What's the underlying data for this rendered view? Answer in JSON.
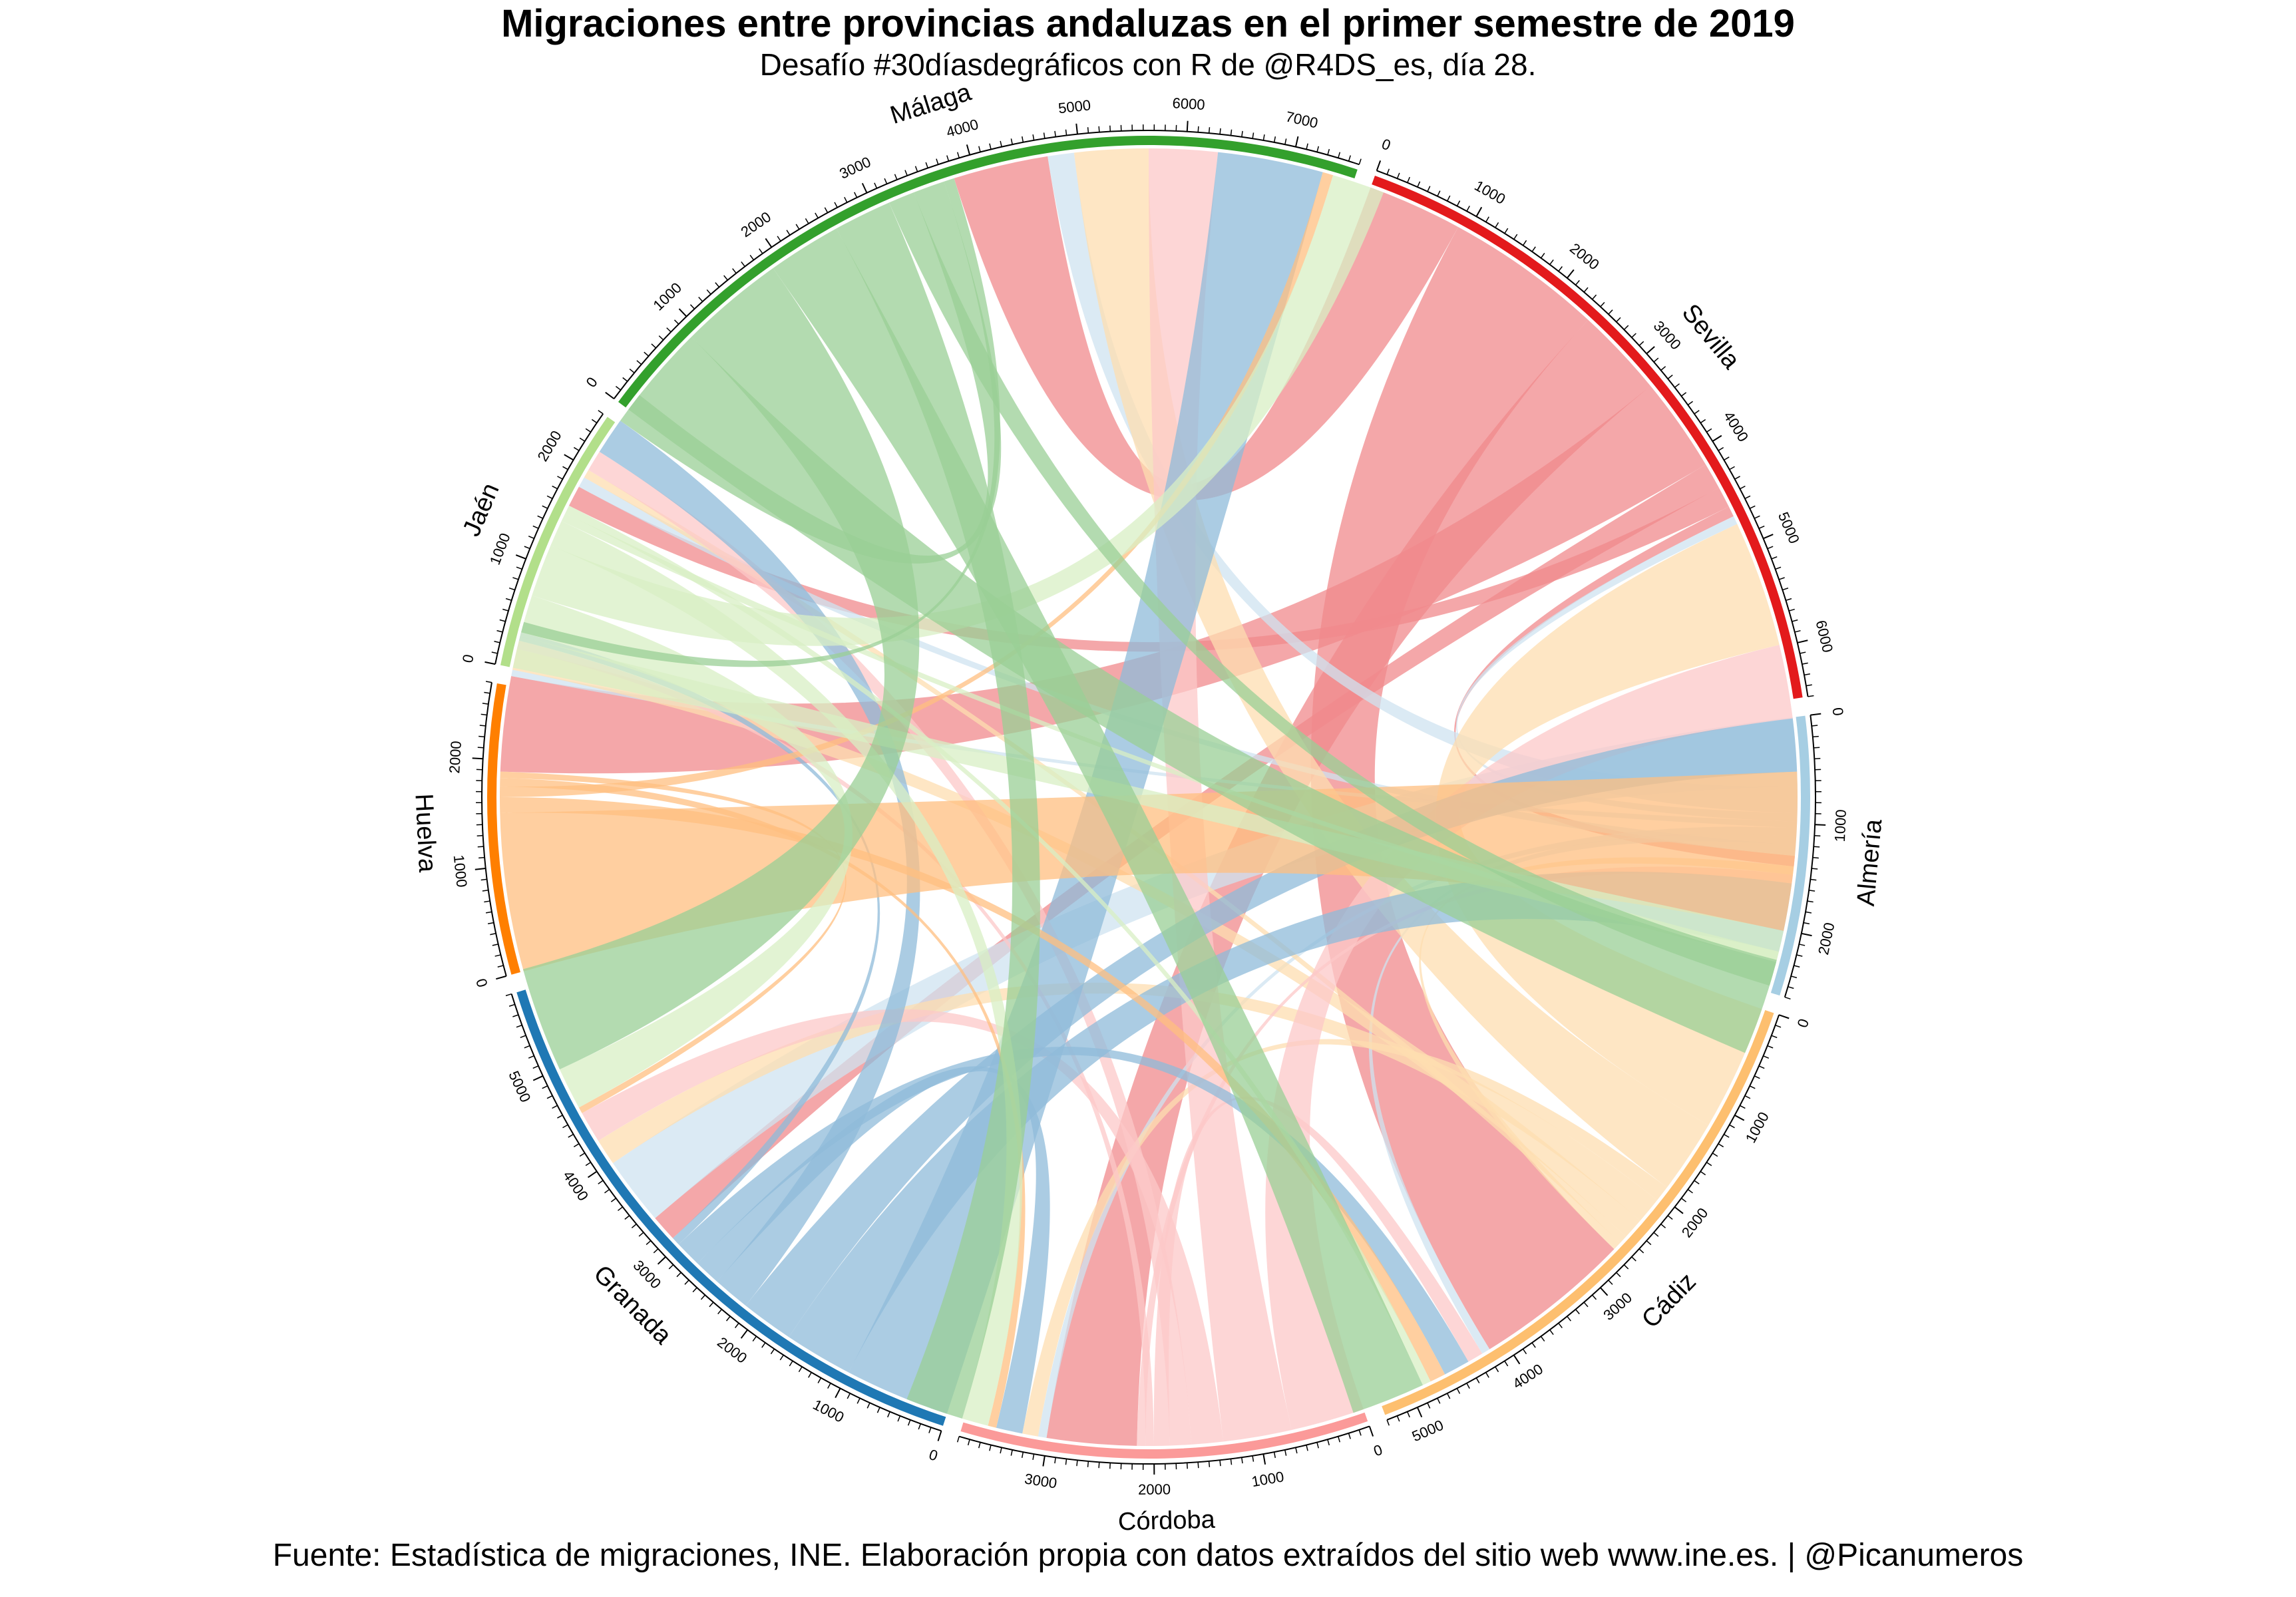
{
  "title": "Migraciones entre provincias andaluzas en el primer semestre de 2019",
  "subtitle": "Desafío #30díasdegráficos con R de @R4DS_es, día 28.",
  "caption": "Fuente: Estadística de migraciones, INE. Elaboración propia con datos extraídos del sitio web www.ine.es. | @Picanumeros",
  "chart_data": {
    "type": "chord",
    "unit": "personas",
    "sectors": [
      {
        "name": "Sevilla",
        "total": 6500,
        "color": "#E31A1C",
        "link_color": "#F08A8C"
      },
      {
        "name": "Almería",
        "total": 2600,
        "color": "#A6CEE3",
        "link_color": "#CFE3F0"
      },
      {
        "name": "Cádiz",
        "total": 5300,
        "color": "#FDBF6F",
        "link_color": "#FEDDB0"
      },
      {
        "name": "Córdoba",
        "total": 3800,
        "color": "#FB9A99",
        "link_color": "#FCC8C8"
      },
      {
        "name": "Granada",
        "total": 5800,
        "color": "#1F78B4",
        "link_color": "#8FBBD9"
      },
      {
        "name": "Huelva",
        "total": 2700,
        "color": "#FF7F00",
        "link_color": "#FFBF80"
      },
      {
        "name": "Jaén",
        "total": 2500,
        "color": "#B2DF8A",
        "link_color": "#D8EFC4"
      },
      {
        "name": "Málaga",
        "total": 7600,
        "color": "#33A02C",
        "link_color": "#99CF95"
      }
    ],
    "flows": [
      {
        "from": "Sevilla",
        "to": "Málaga",
        "value": 900
      },
      {
        "from": "Sevilla",
        "to": "Cádiz",
        "value": 1500
      },
      {
        "from": "Sevilla",
        "to": "Córdoba",
        "value": 850
      },
      {
        "from": "Sevilla",
        "to": "Huelva",
        "value": 900
      },
      {
        "from": "Sevilla",
        "to": "Granada",
        "value": 250
      },
      {
        "from": "Sevilla",
        "to": "Jaén",
        "value": 200
      },
      {
        "from": "Sevilla",
        "to": "Almería",
        "value": 100
      },
      {
        "from": "Almería",
        "to": "Granada",
        "value": 650
      },
      {
        "from": "Almería",
        "to": "Málaga",
        "value": 250
      },
      {
        "from": "Almería",
        "to": "Sevilla",
        "value": 80
      },
      {
        "from": "Almería",
        "to": "Huelva",
        "value": 60
      },
      {
        "from": "Almería",
        "to": "Córdoba",
        "value": 80
      },
      {
        "from": "Almería",
        "to": "Cádiz",
        "value": 80
      },
      {
        "from": "Almería",
        "to": "Jaén",
        "value": 100
      },
      {
        "from": "Cádiz",
        "to": "Sevilla",
        "value": 1200
      },
      {
        "from": "Cádiz",
        "to": "Málaga",
        "value": 700
      },
      {
        "from": "Cádiz",
        "to": "Córdoba",
        "value": 150
      },
      {
        "from": "Cádiz",
        "to": "Granada",
        "value": 250
      },
      {
        "from": "Cádiz",
        "to": "Huelva",
        "value": 200
      },
      {
        "from": "Cádiz",
        "to": "Jaén",
        "value": 80
      },
      {
        "from": "Cádiz",
        "to": "Almería",
        "value": 80
      },
      {
        "from": "Córdoba",
        "to": "Sevilla",
        "value": 700
      },
      {
        "from": "Córdoba",
        "to": "Málaga",
        "value": 650
      },
      {
        "from": "Córdoba",
        "to": "Granada",
        "value": 300
      },
      {
        "from": "Córdoba",
        "to": "Jaén",
        "value": 200
      },
      {
        "from": "Córdoba",
        "to": "Cádiz",
        "value": 150
      },
      {
        "from": "Córdoba",
        "to": "Huelva",
        "value": 80
      },
      {
        "from": "Córdoba",
        "to": "Almería",
        "value": 80
      },
      {
        "from": "Granada",
        "to": "Málaga",
        "value": 1000
      },
      {
        "from": "Granada",
        "to": "Almería",
        "value": 650
      },
      {
        "from": "Granada",
        "to": "Sevilla",
        "value": 500
      },
      {
        "from": "Granada",
        "to": "Jaén",
        "value": 350
      },
      {
        "from": "Granada",
        "to": "Córdoba",
        "value": 250
      },
      {
        "from": "Granada",
        "to": "Cádiz",
        "value": 250
      },
      {
        "from": "Granada",
        "to": "Huelva",
        "value": 80
      },
      {
        "from": "Huelva",
        "to": "Sevilla",
        "value": 1500
      },
      {
        "from": "Huelva",
        "to": "Cádiz",
        "value": 150
      },
      {
        "from": "Huelva",
        "to": "Málaga",
        "value": 100
      },
      {
        "from": "Huelva",
        "to": "Córdoba",
        "value": 80
      },
      {
        "from": "Huelva",
        "to": "Granada",
        "value": 60
      },
      {
        "from": "Jaén",
        "to": "Sevilla",
        "value": 300
      },
      {
        "from": "Jaén",
        "to": "Granada",
        "value": 400
      },
      {
        "from": "Jaén",
        "to": "Málaga",
        "value": 500
      },
      {
        "from": "Jaén",
        "to": "Córdoba",
        "value": 250
      },
      {
        "from": "Jaén",
        "to": "Almería",
        "value": 80
      },
      {
        "from": "Jaén",
        "to": "Cádiz",
        "value": 80
      },
      {
        "from": "Málaga",
        "to": "Sevilla",
        "value": 900
      },
      {
        "from": "Málaga",
        "to": "Granada",
        "value": 1000
      },
      {
        "from": "Málaga",
        "to": "Cádiz",
        "value": 700
      },
      {
        "from": "Málaga",
        "to": "Córdoba",
        "value": 550
      },
      {
        "from": "Málaga",
        "to": "Almería",
        "value": 250
      },
      {
        "from": "Málaga",
        "to": "Jaén",
        "value": 300
      },
      {
        "from": "Málaga",
        "to": "Huelva",
        "value": 100
      }
    ],
    "ticks": {
      "major_step": 1000,
      "minor_step": 100
    }
  }
}
